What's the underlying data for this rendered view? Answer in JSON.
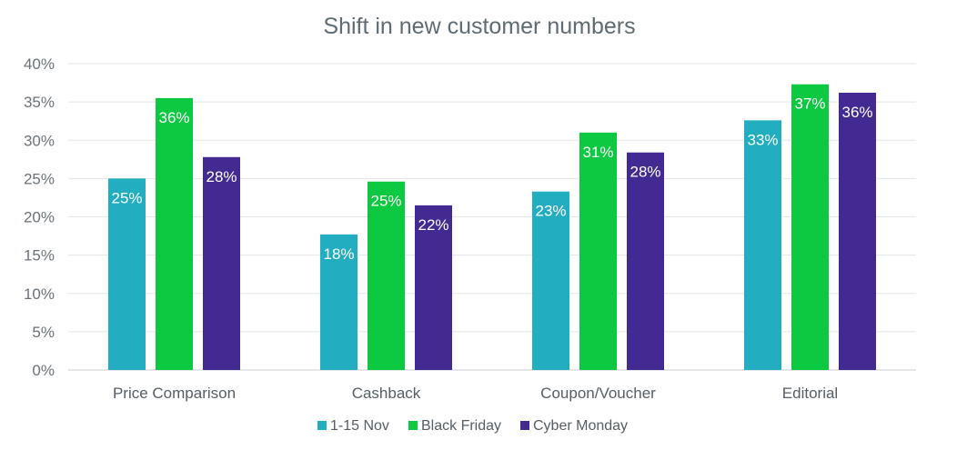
{
  "chart_data": {
    "type": "bar",
    "title": "Shift in new customer numbers",
    "xlabel": "",
    "ylabel": "",
    "ylim": [
      0,
      40
    ],
    "yticks": [
      "0%",
      "5%",
      "10%",
      "15%",
      "20%",
      "25%",
      "30%",
      "35%",
      "40%"
    ],
    "grid": true,
    "legend_position": "bottom",
    "categories": [
      "Price Comparison",
      "Cashback",
      "Coupon/Voucher",
      "Editorial"
    ],
    "series": [
      {
        "name": "1-15 Nov",
        "color": "#22adc1",
        "values": [
          25,
          17.7,
          23.3,
          32.6
        ],
        "labels": [
          "25%",
          "18%",
          "23%",
          "33%"
        ]
      },
      {
        "name": "Black Friday",
        "color": "#0dc841",
        "values": [
          35.5,
          24.6,
          31,
          37.3
        ],
        "labels": [
          "36%",
          "25%",
          "31%",
          "37%"
        ]
      },
      {
        "name": "Cyber Monday",
        "color": "#432992",
        "values": [
          27.8,
          21.5,
          28.4,
          36.2
        ],
        "labels": [
          "28%",
          "22%",
          "28%",
          "36%"
        ]
      }
    ]
  }
}
